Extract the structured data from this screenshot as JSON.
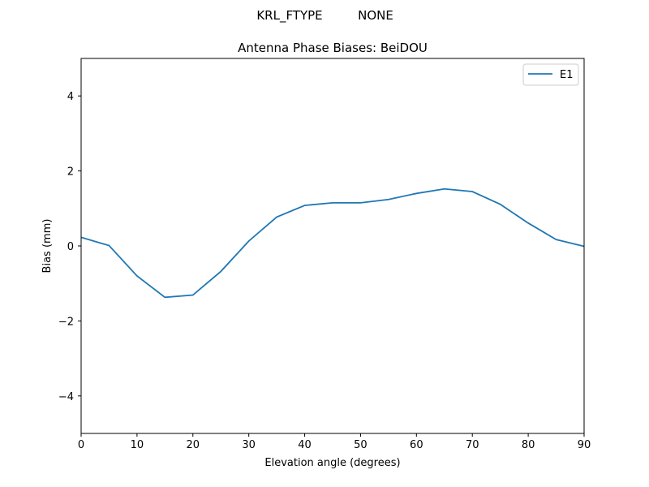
{
  "figure": {
    "suptitle_key": "KRL_FTYPE",
    "suptitle_value": "NONE"
  },
  "chart_data": {
    "type": "line",
    "title": "Antenna Phase Biases: BeiDOU",
    "xlabel": "Elevation angle (degrees)",
    "ylabel": "Bias (mm)",
    "xlim": [
      0,
      90
    ],
    "ylim": [
      -5,
      5
    ],
    "xticks": [
      0,
      10,
      20,
      30,
      40,
      50,
      60,
      70,
      80,
      90
    ],
    "yticks": [
      -4,
      -2,
      0,
      2,
      4
    ],
    "ytick_labels": [
      "−4",
      "−2",
      "0",
      "2",
      "4"
    ],
    "grid": false,
    "legend_position": "top-right",
    "x": [
      0,
      5,
      10,
      15,
      20,
      25,
      30,
      35,
      40,
      45,
      50,
      55,
      60,
      65,
      70,
      75,
      80,
      85,
      90
    ],
    "series": [
      {
        "name": "E1",
        "color": "#1f77b4",
        "values": [
          0.23,
          0.01,
          -0.8,
          -1.37,
          -1.31,
          -0.68,
          0.13,
          0.77,
          1.08,
          1.15,
          1.15,
          1.24,
          1.4,
          1.52,
          1.45,
          1.11,
          0.61,
          0.17,
          -0.01
        ]
      }
    ]
  }
}
